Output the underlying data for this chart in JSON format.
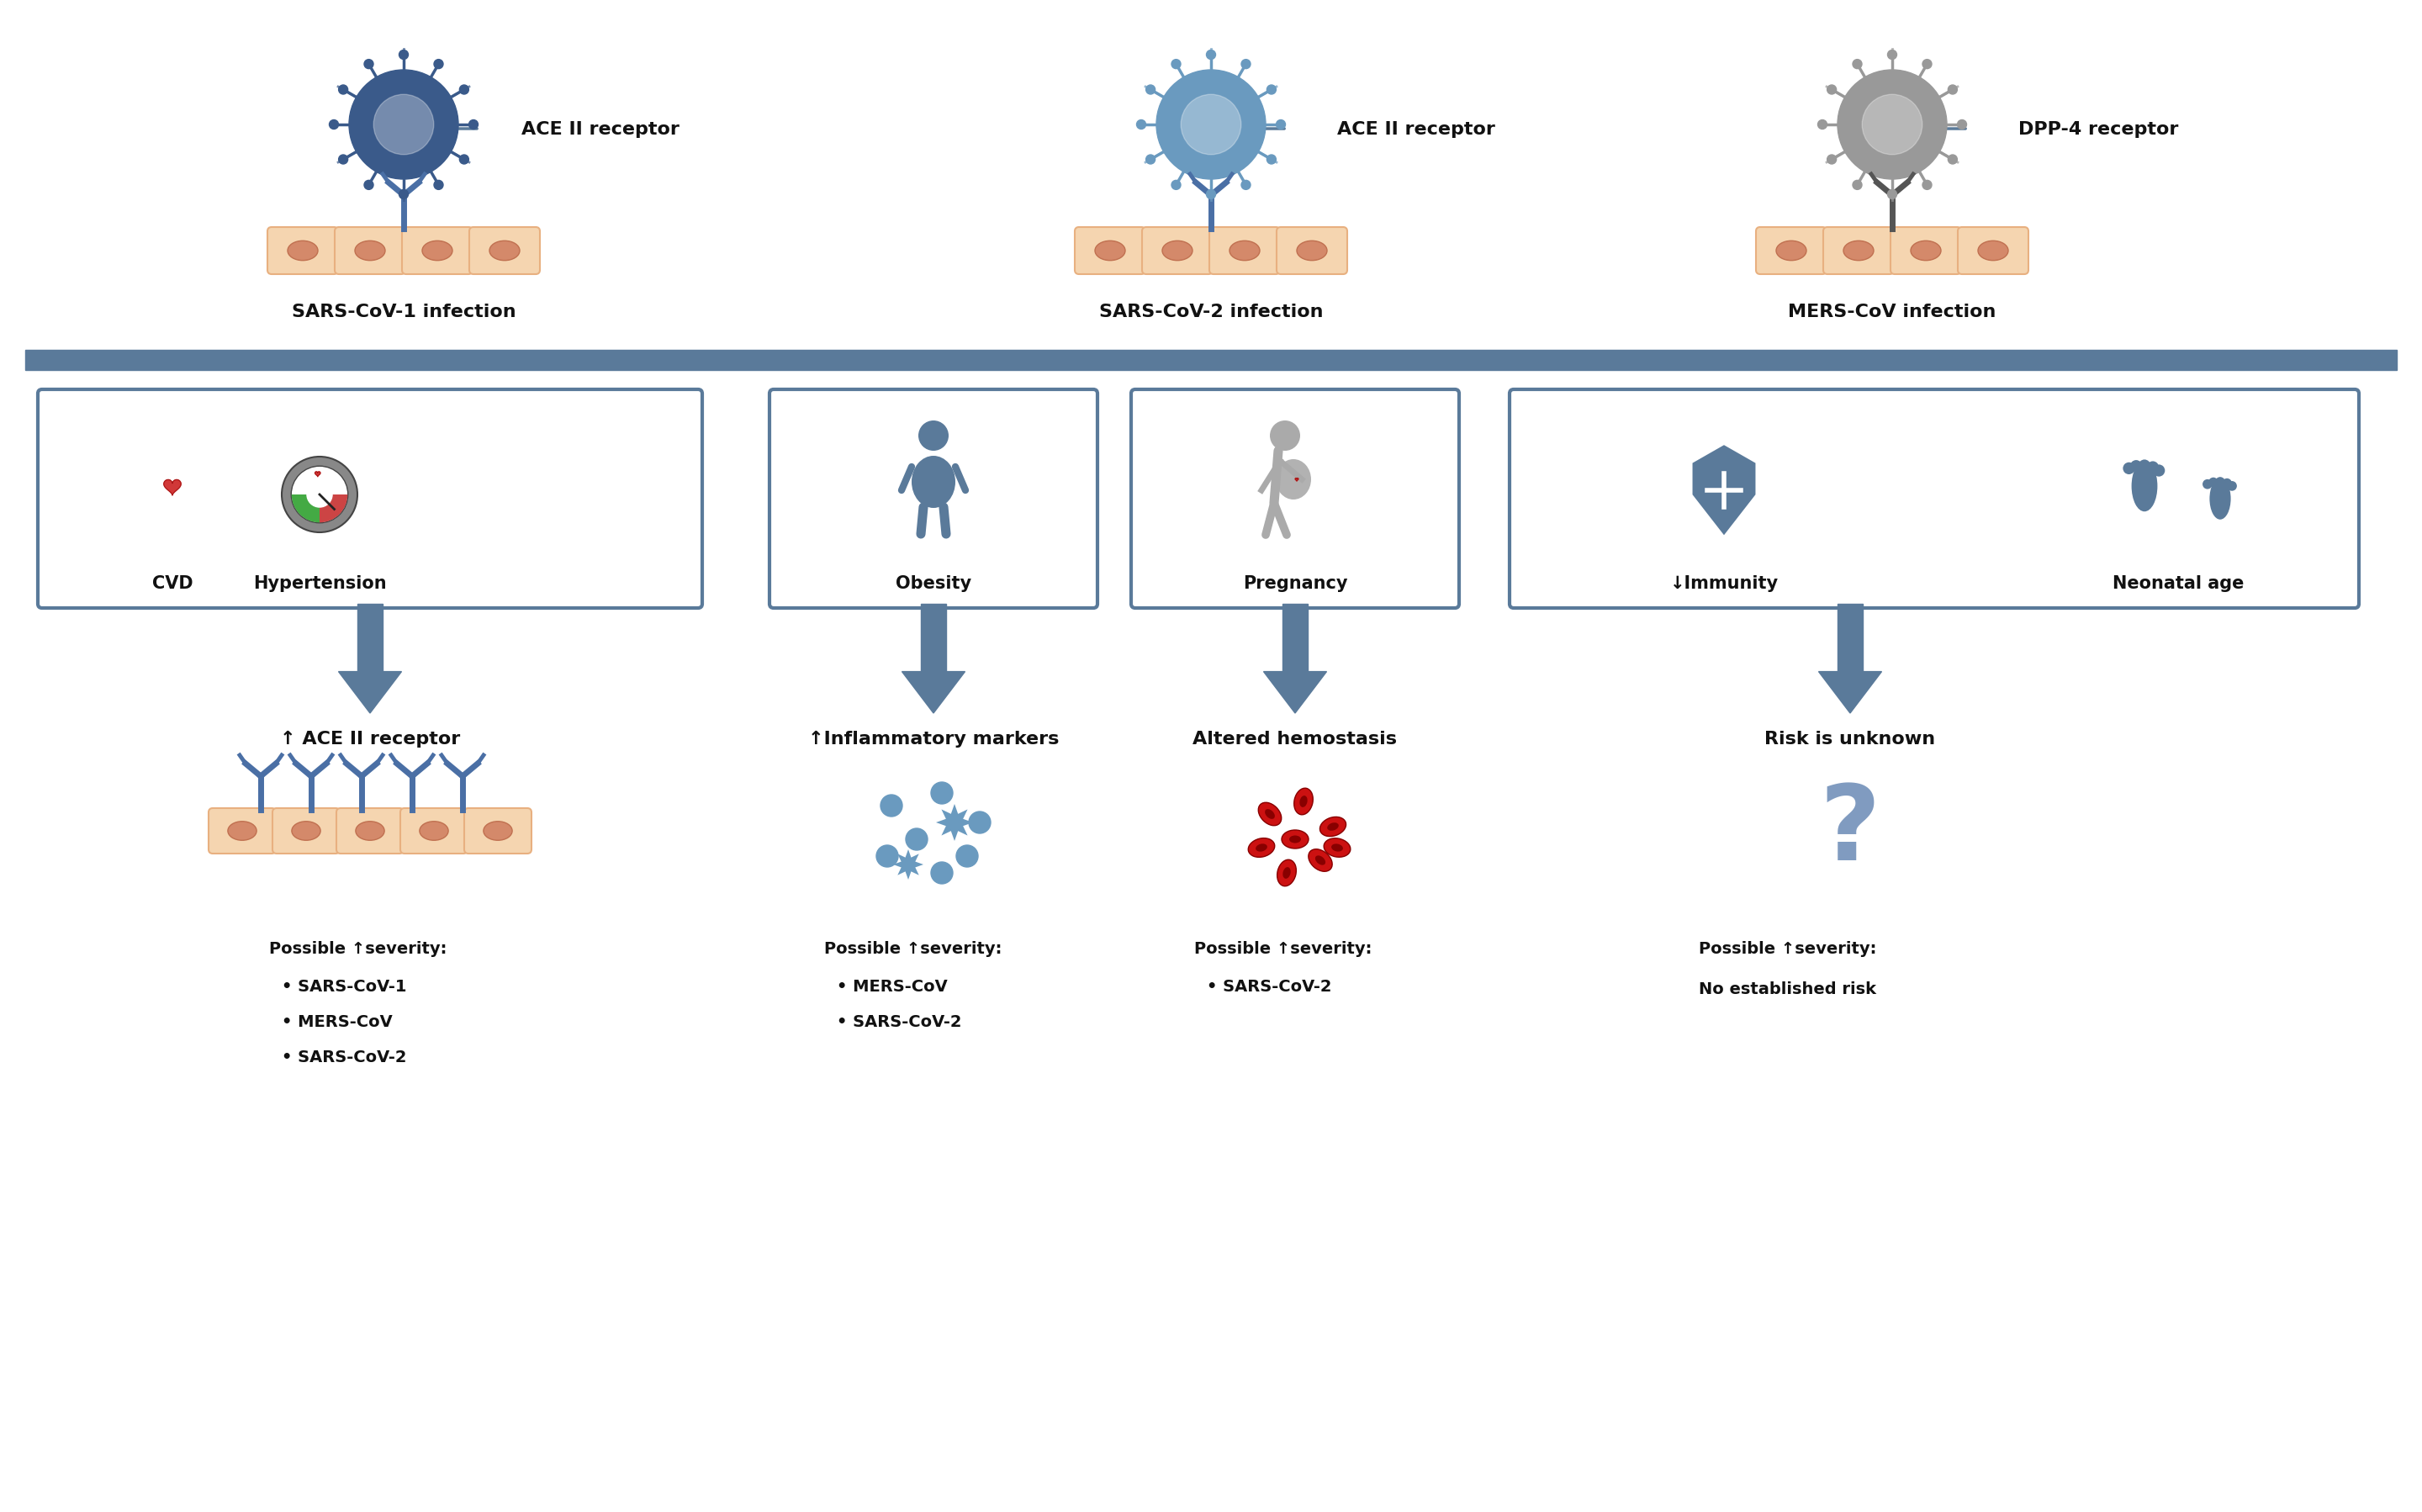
{
  "bg_color": "#ffffff",
  "divider_color": "#5a7a9a",
  "box_border_color": "#5a7a9a",
  "arrow_color": "#5a7a9a",
  "cell_color": "#f5d5b0",
  "cell_outline": "#e8b080",
  "receptor_blue": "#4a6fa5",
  "receptor_gray": "#888888",
  "virus_blue_dark": "#3a5a8a",
  "virus_blue_light": "#6a9abf",
  "virus_gray": "#999999",
  "text_color": "#111111",
  "top_labels": [
    "SARS-CoV-1 infection",
    "SARS-CoV-2 infection",
    "MERS-CoV infection"
  ],
  "top_receptors": [
    "ACE II receptor",
    "ACE II receptor",
    "DPP-4 receptor"
  ],
  "box1_labels": [
    "CVD",
    "Hypertension"
  ],
  "box2_labels": [
    "Obesity",
    "Pregnancy"
  ],
  "box3_labels": [
    "↓Immunity",
    "Neonatal age"
  ],
  "effect_labels": [
    "↑ ACE II receptor",
    "↑Inflammatory markers",
    "Altered hemostasis",
    "Risk is unknown"
  ],
  "severity_header": "Possible ↑severity:",
  "severity_col1": [
    "SARS-CoV-1",
    "MERS-CoV",
    "SARS-CoV-2"
  ],
  "severity_col2": [
    "MERS-CoV",
    "SARS-CoV-2"
  ],
  "severity_col3": [
    "SARS-CoV-2"
  ],
  "severity_col4": "No established risk"
}
